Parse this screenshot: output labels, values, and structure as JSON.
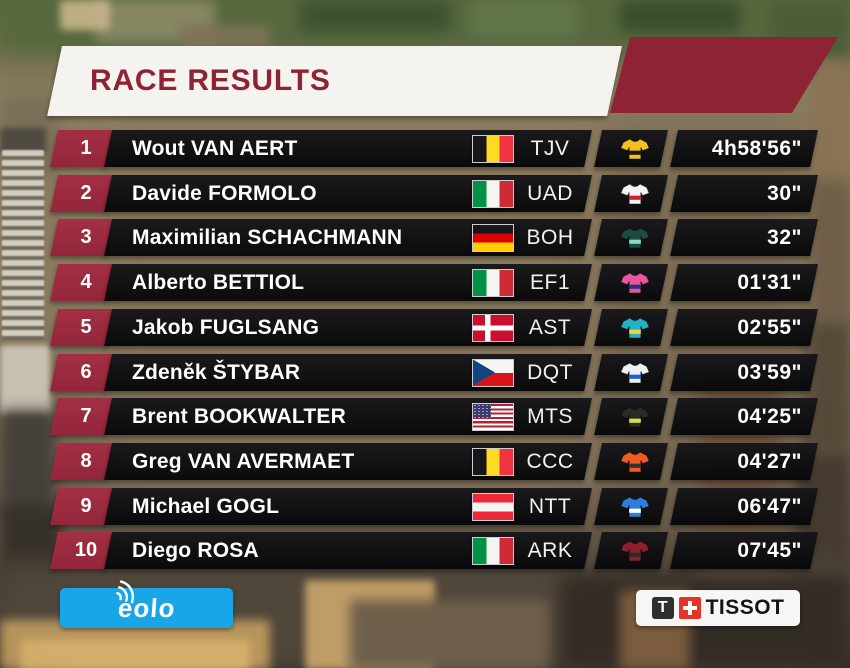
{
  "header": {
    "title": "RACE RESULTS"
  },
  "colors": {
    "maroon_accent": "#8e2334",
    "rank_maroon": "#9c2a3c",
    "bar_black": "#0b0b0d",
    "eolo_blue": "#18a6e8",
    "tissot_red": "#e6332a",
    "header_bg_white": "#f5f3ef"
  },
  "icons": {
    "eolo_waves": "wifi-arcs-icon",
    "tissot_cross": "swiss-cross-icon",
    "tissot_monogram": "T",
    "row_jersey": "cycling-jersey-icon"
  },
  "results": [
    {
      "rank": "1",
      "name": "Wout VAN AERT",
      "country": "BEL",
      "team": "TJV",
      "time": "4h58'56\"",
      "jersey_body": "#f2c11e",
      "jersey_accent": "#1a1a1a"
    },
    {
      "rank": "2",
      "name": "Davide FORMOLO",
      "country": "ITA",
      "team": "UAD",
      "time": "30\"",
      "jersey_body": "#f3f3f3",
      "jersey_accent": "#d0202e"
    },
    {
      "rank": "3",
      "name": "Maximilian SCHACHMANN",
      "country": "GER",
      "team": "BOH",
      "time": "32\"",
      "jersey_body": "#1c4b41",
      "jersey_accent": "#8fd8c6"
    },
    {
      "rank": "4",
      "name": "Alberto BETTIOL",
      "country": "ITA",
      "team": "EF1",
      "time": "01'31\"",
      "jersey_body": "#e8569d",
      "jersey_accent": "#28357e"
    },
    {
      "rank": "5",
      "name": "Jakob FUGLSANG",
      "country": "DEN",
      "team": "AST",
      "time": "02'55\"",
      "jersey_body": "#23b3c7",
      "jersey_accent": "#f2d23c"
    },
    {
      "rank": "6",
      "name": "Zdeněk ŠTYBAR",
      "country": "CZE",
      "team": "DQT",
      "time": "03'59\"",
      "jersey_body": "#eef1f4",
      "jersey_accent": "#1d5ccc"
    },
    {
      "rank": "7",
      "name": "Brent BOOKWALTER",
      "country": "USA",
      "team": "MTS",
      "time": "04'25\"",
      "jersey_body": "#2a2c24",
      "jersey_accent": "#d6df4e"
    },
    {
      "rank": "8",
      "name": "Greg VAN AVERMAET",
      "country": "BEL",
      "team": "CCC",
      "time": "04'27\"",
      "jersey_body": "#ef5b23",
      "jersey_accent": "#33322f"
    },
    {
      "rank": "9",
      "name": "Michael GOGL",
      "country": "AUT",
      "team": "NTT",
      "time": "06'47\"",
      "jersey_body": "#2e7cdb",
      "jersey_accent": "#ffffff"
    },
    {
      "rank": "10",
      "name": "Diego ROSA",
      "country": "ITA",
      "team": "ARK",
      "time": "07'45\"",
      "jersey_body": "#8d1f2d",
      "jersey_accent": "#2b2b2b"
    }
  ],
  "sponsors": {
    "eolo": {
      "label": "eolo"
    },
    "tissot": {
      "label": "TISSOT",
      "monogram": "T"
    }
  }
}
